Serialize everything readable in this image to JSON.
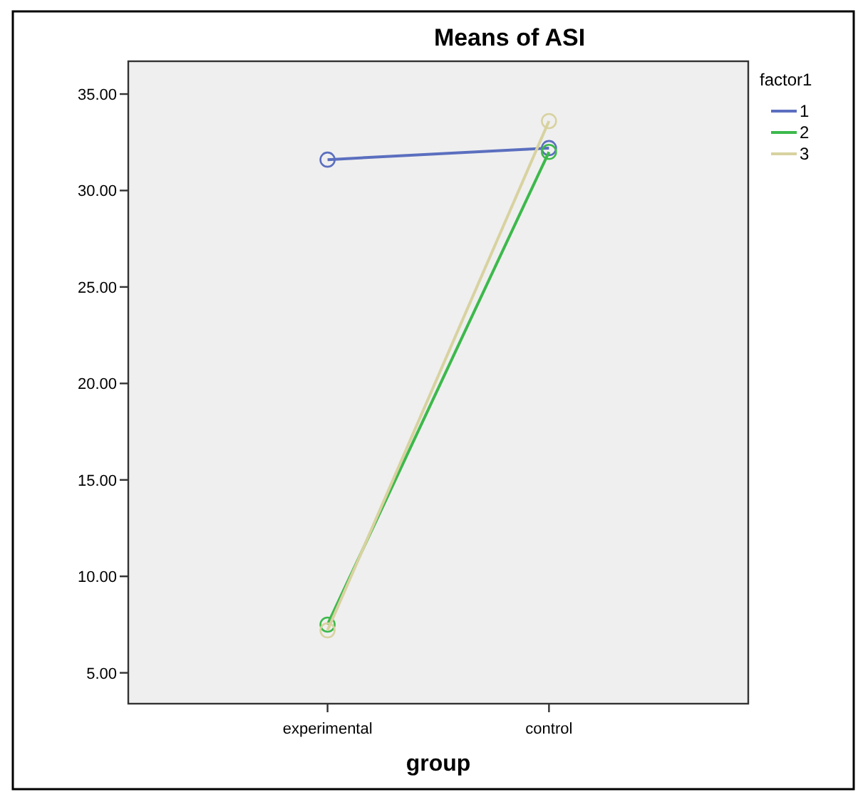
{
  "chart_data": {
    "type": "line",
    "title": "Means of ASI",
    "xlabel": "group",
    "legend_title": "factor1",
    "categories": [
      "experimental",
      "control"
    ],
    "series": [
      {
        "name": "1",
        "color": "#5b6fbf",
        "values": [
          31.6,
          32.2
        ]
      },
      {
        "name": "2",
        "color": "#3cb94b",
        "values": [
          7.5,
          32.0
        ]
      },
      {
        "name": "3",
        "color": "#d8d2a0",
        "values": [
          7.2,
          33.6
        ]
      }
    ],
    "ylim": [
      3.4,
      36.7
    ],
    "yticks": [
      {
        "value": 5,
        "label": "5.00"
      },
      {
        "value": 10,
        "label": "10.00"
      },
      {
        "value": 15,
        "label": "15.00"
      },
      {
        "value": 20,
        "label": "20.00"
      },
      {
        "value": 25,
        "label": "25.00"
      },
      {
        "value": 30,
        "label": "30.00"
      },
      {
        "value": 35,
        "label": "35.00"
      }
    ],
    "grid": false,
    "legend": "right",
    "marker": "circle",
    "line_style": "solid"
  }
}
